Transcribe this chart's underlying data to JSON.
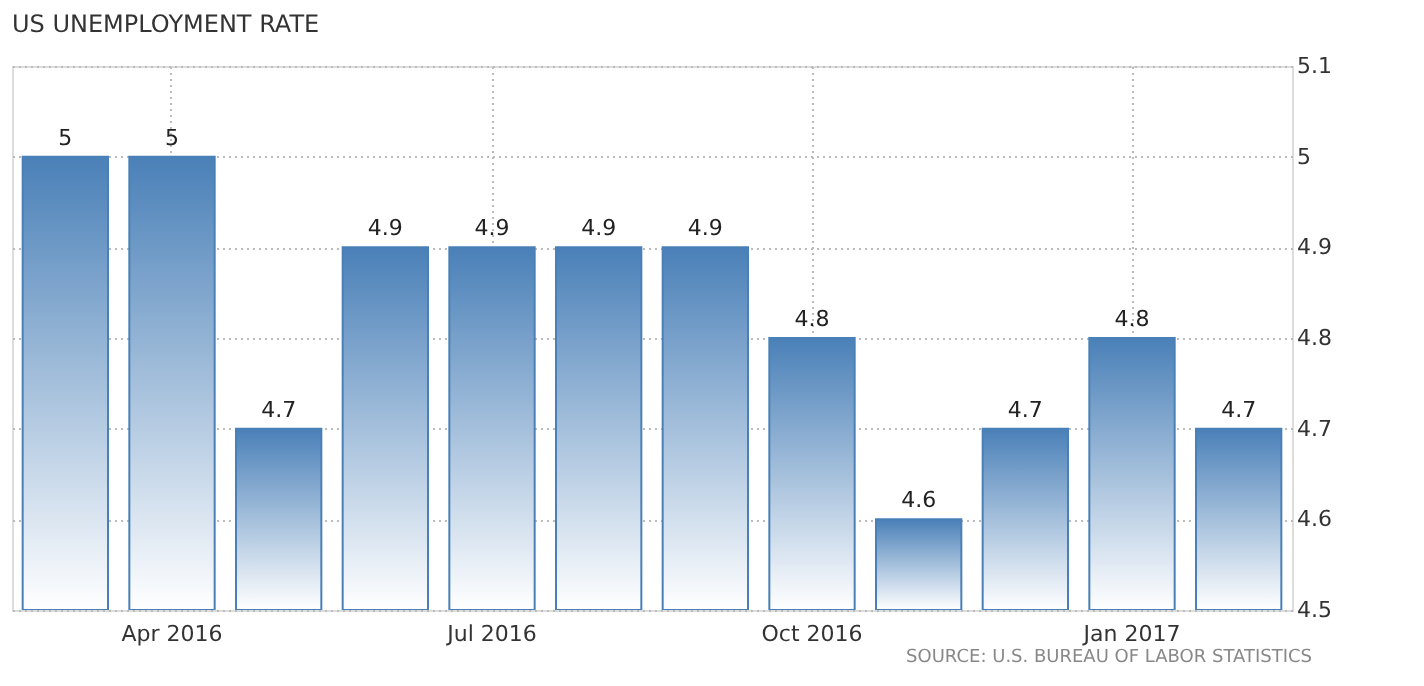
{
  "chart_data": {
    "type": "bar",
    "title": "US UNEMPLOYMENT RATE",
    "categories": [
      null,
      "Apr 2016",
      null,
      null,
      "Jul 2016",
      null,
      null,
      "Oct 2016",
      null,
      null,
      "Jan 2017",
      null
    ],
    "values": [
      5,
      5,
      4.7,
      4.9,
      4.9,
      4.9,
      4.9,
      4.8,
      4.6,
      4.7,
      4.8,
      4.7
    ],
    "color": "#4a80b8",
    "ylim": [
      4.5,
      5.1
    ],
    "yticks": [
      4.5,
      4.6,
      4.7,
      4.8,
      4.9,
      5,
      5.1
    ],
    "grid": true,
    "data_labels": true,
    "annotations": [
      "SOURCE: U.S. BUREAU OF LABOR STATISTICS"
    ]
  }
}
